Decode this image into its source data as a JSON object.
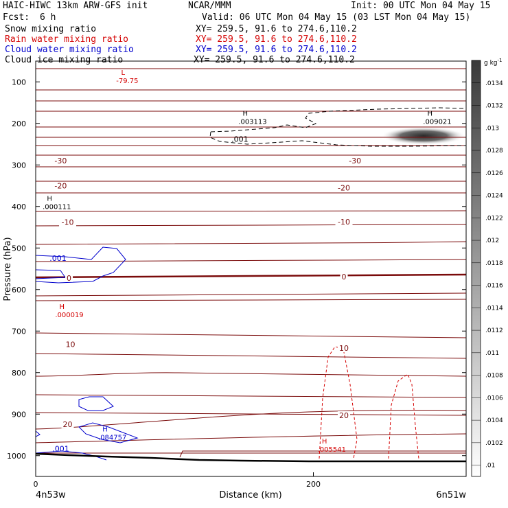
{
  "header": {
    "model": "HAIC-HIWC 13km ARW-GFS init",
    "org": "NCAR/MMM",
    "init": "Init: 00 UTC Mon 04 May 15",
    "fcst_label": "Fcst:",
    "fcst_value": "6 h",
    "valid": "Valid: 06 UTC Mon 04 May 15 (03 LST Mon 04 May 15)"
  },
  "fields": [
    {
      "name": "Snow mixing ratio",
      "xy": "XY= 259.5, 91.6 to 274.6,110.2",
      "color": "#000000"
    },
    {
      "name": "Rain water mixing ratio",
      "xy": "XY= 259.5, 91.6 to 274.6,110.2",
      "color": "#d40000"
    },
    {
      "name": "Cloud water mixing ratio",
      "xy": "XY= 259.5, 91.6 to 274.6,110.2",
      "color": "#0000cc"
    },
    {
      "name": "Cloud ice mixing ratio",
      "xy": "XY= 259.5, 91.6 to 274.6,110.2",
      "color": "#000000"
    }
  ],
  "colors": {
    "temperature": "#7a0a0a",
    "rain": "#d40000",
    "cloud_water": "#0000cc",
    "snow": "#000000",
    "terrain": "#000000"
  },
  "chart_data": {
    "type": "contour",
    "ylabel": "Pressure (hPa)",
    "xlabel": "Distance (km)",
    "ylim": [
      1050,
      50
    ],
    "xlim": [
      0,
      310
    ],
    "yticks": [
      100,
      200,
      300,
      400,
      500,
      600,
      700,
      800,
      900,
      1000
    ],
    "xticks": [
      0,
      200
    ],
    "x_endpoints": {
      "left": "4n53w",
      "right": "6n51w"
    },
    "colorbar": {
      "unit": "g kg",
      "unit_exp": "-1",
      "labels": [
        ".01",
        ".0102",
        ".0104",
        ".0106",
        ".0108",
        ".011",
        ".0112",
        ".0114",
        ".0116",
        ".0118",
        ".012",
        ".0122",
        ".0124",
        ".0126",
        ".0128",
        ".013",
        ".0132",
        ".0134"
      ]
    },
    "isotherm_labels": [
      {
        "text": "-30",
        "x": 18,
        "p": 290
      },
      {
        "text": "-30",
        "x": 230,
        "p": 290
      },
      {
        "text": "-20",
        "x": 18,
        "p": 350
      },
      {
        "text": "-20",
        "x": 222,
        "p": 355
      },
      {
        "text": "-10",
        "x": 23,
        "p": 438
      },
      {
        "text": "-10",
        "x": 222,
        "p": 437
      },
      {
        "text": "0",
        "x": 24,
        "p": 572
      },
      {
        "text": "0",
        "x": 222,
        "p": 569
      },
      {
        "text": "10",
        "x": 25,
        "p": 732
      },
      {
        "text": "10",
        "x": 222,
        "p": 741
      },
      {
        "text": "20",
        "x": 23,
        "p": 924
      },
      {
        "text": "20",
        "x": 222,
        "p": 903
      }
    ],
    "extrema": [
      {
        "kind": "L",
        "value": "-79.75",
        "x": 58,
        "p": 90,
        "color": "#d40000"
      },
      {
        "kind": "H",
        "value": ".003113",
        "x": 146,
        "p": 188,
        "color": "#000000"
      },
      {
        "kind": "H",
        "value": ".009021",
        "x": 279,
        "p": 188,
        "color": "#000000"
      },
      {
        "kind": "H",
        "value": ".000111",
        "x": 5,
        "p": 393,
        "color": "#000000"
      },
      {
        "kind": "H",
        "value": ".000019",
        "x": 14,
        "p": 653,
        "color": "#d40000"
      },
      {
        "kind": "H",
        "value": ".084757",
        "x": 45,
        "p": 948,
        "color": "#0000cc"
      },
      {
        "kind": "H",
        "value": ".005541",
        "x": 203,
        "p": 977,
        "color": "#d40000"
      }
    ],
    "contour_labels": [
      {
        "text": ".001",
        "x": 141,
        "p": 238,
        "color": "#000000"
      },
      {
        "text": ".001",
        "x": 10,
        "p": 524,
        "color": "#0000cc"
      },
      {
        "text": ".001",
        "x": 12,
        "p": 983,
        "color": "#0000cc"
      }
    ]
  }
}
